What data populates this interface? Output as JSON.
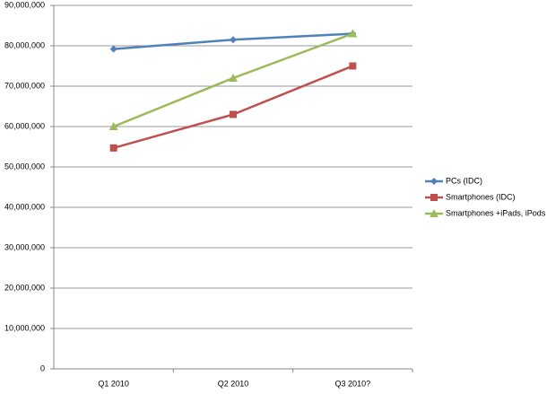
{
  "chart_data": {
    "type": "line",
    "categories": [
      "Q1 2010",
      "Q2 2010",
      "Q3 2010?"
    ],
    "series": [
      {
        "name": "PCs (IDC)",
        "color": "#4f81bd",
        "marker": "diamond",
        "values": [
          79200000,
          81500000,
          83000000
        ]
      },
      {
        "name": "Smartphones (IDC)",
        "color": "#c0504d",
        "marker": "square",
        "values": [
          54700000,
          63000000,
          75000000
        ]
      },
      {
        "name": "Smartphones +iPads, iPods (",
        "color": "#9bbb59",
        "marker": "triangle",
        "values": [
          60000000,
          72000000,
          83000000
        ]
      }
    ],
    "ylim": [
      0,
      90000000
    ],
    "yticks": [
      0,
      {
        "value": 10000000,
        "label": "10,000,000"
      },
      {
        "value": 20000000,
        "label": "20,000,000"
      },
      {
        "value": 30000000,
        "label": "30,000,000"
      },
      {
        "value": 40000000,
        "label": "40,000,000"
      },
      {
        "value": 50000000,
        "label": "50,000,000"
      },
      {
        "value": 60000000,
        "label": "60,000,000"
      },
      {
        "value": 70000000,
        "label": "70,000,000"
      },
      {
        "value": 80000000,
        "label": "80,000,000"
      },
      {
        "value": 90000000,
        "label": "90,000,000"
      }
    ],
    "grid": true,
    "legend": "right"
  }
}
